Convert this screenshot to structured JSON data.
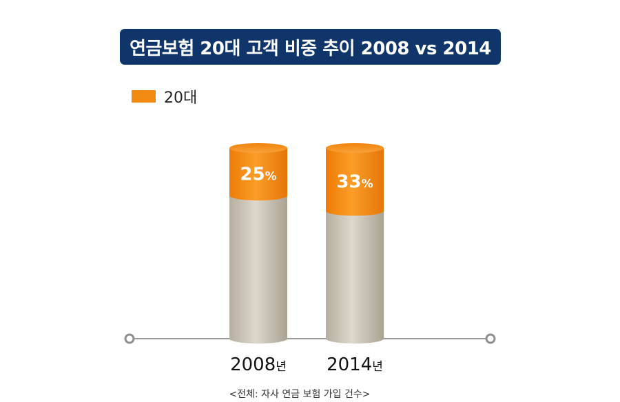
{
  "title": "연금보험 20대 고객 비중 추이 2008 vs 2014",
  "legend": {
    "label": "20대"
  },
  "footnote": "<전체: 자사 연금 보험 가입 건수>",
  "colors": {
    "title_bg": "#0f356b",
    "accent": "#f08a10",
    "cylinder": "#cdc7b8",
    "axis": "#9a9a9a"
  },
  "chart_data": {
    "type": "bar",
    "categories": [
      "2008",
      "2014"
    ],
    "category_suffix": "년",
    "series": [
      {
        "name": "20대",
        "values": [
          25,
          33
        ]
      }
    ],
    "value_suffix": "%",
    "ylim": [
      0,
      100
    ]
  }
}
